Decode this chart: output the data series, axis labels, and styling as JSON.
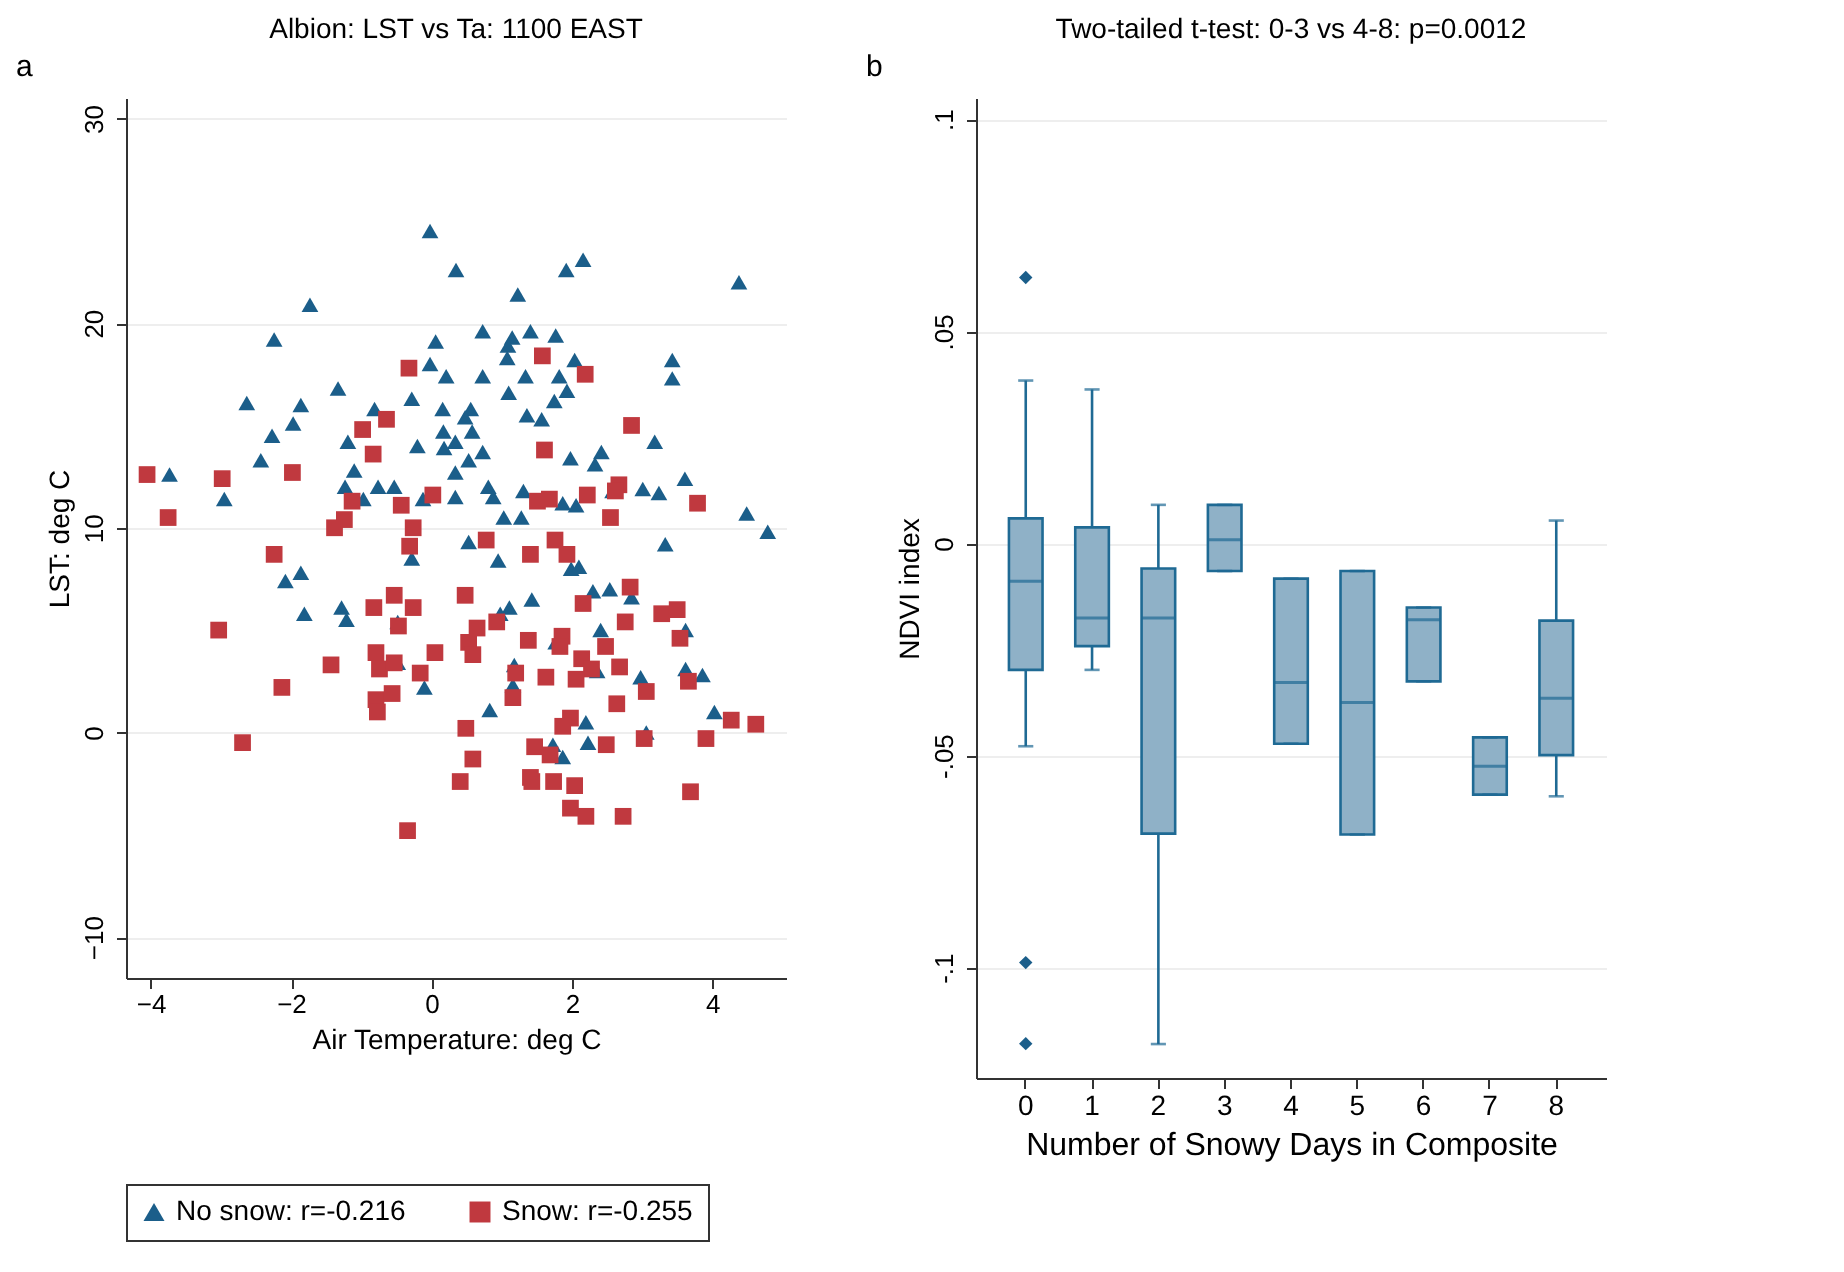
{
  "chart_data": [
    {
      "type": "scatter",
      "title": "Albion: LST vs Ta: 1100 EAST",
      "xlabel": "Air Temperature: deg C",
      "ylabel": "LST: deg C",
      "annotations": [
        "a"
      ],
      "xlim": [
        -4.35,
        5.05
      ],
      "xticks": [
        -4,
        -2,
        0,
        2,
        4
      ],
      "ylim": [
        -12,
        31
      ],
      "yticks": [
        -10,
        0,
        10,
        20,
        30
      ],
      "grid": "y",
      "legend": "bottom",
      "series": [
        {
          "name": "No snow: r=-0.216",
          "color": "#1b5e8a",
          "marker": "triangle",
          "x": [
            -0.02,
            0.35,
            1.23,
            1.92,
            2.16,
            4.38,
            -1.73,
            -2.24,
            0.73,
            1.15,
            1.41,
            1.77,
            0.06,
            1.09,
            1.08,
            2.04,
            3.43,
            3.43,
            -0.02,
            0.21,
            0.73,
            1.34,
            1.82,
            1.93,
            -1.33,
            1.1,
            1.75,
            -0.28,
            -2.63,
            -1.86,
            -0.81,
            0.16,
            0.56,
            0.48,
            1.36,
            1.57,
            -1.97,
            0.17,
            0.58,
            -2.27,
            -1.19,
            -0.2,
            0.34,
            3.18,
            0.18,
            0.73,
            2.42,
            1.98,
            0.53,
            -2.43,
            2.33,
            -1.1,
            -3.73,
            0.34,
            3.61,
            -1.23,
            -0.76,
            -0.53,
            0.81,
            3.01,
            3.24,
            -2.95,
            -0.97,
            -0.12,
            0.34,
            0.88,
            1.31,
            2.58,
            1.87,
            2.06,
            1.03,
            1.28,
            4.49,
            4.79,
            0.53,
            3.33,
            0.95,
            -0.28,
            -2.08,
            -1.86,
            1.99,
            2.1,
            2.3,
            2.54,
            1.43,
            2.85,
            1.11,
            0.98,
            -1.28,
            -1.81,
            -1.21,
            2.41,
            3.62,
            1.77,
            1.18,
            1.16,
            2.36,
            2.98,
            3.62,
            3.86,
            -0.1,
            0.83,
            4.03,
            2.2,
            3.06,
            1.73,
            1.87,
            2.23,
            -0.48,
            -0.48
          ],
          "values": [
            24.5,
            22.6,
            21.4,
            22.6,
            23.1,
            22.0,
            20.9,
            19.2,
            19.6,
            19.3,
            19.6,
            19.4,
            19.1,
            18.9,
            18.3,
            18.2,
            18.2,
            17.3,
            18.0,
            17.4,
            17.4,
            17.4,
            17.4,
            16.7,
            16.8,
            16.6,
            16.2,
            16.3,
            16.1,
            16.0,
            15.8,
            15.8,
            15.8,
            15.4,
            15.5,
            15.3,
            15.1,
            14.7,
            14.7,
            14.5,
            14.2,
            14.0,
            14.2,
            14.2,
            13.9,
            13.7,
            13.7,
            13.4,
            13.3,
            13.3,
            13.1,
            12.8,
            12.6,
            12.7,
            12.4,
            12.0,
            12.0,
            12.0,
            12.0,
            11.9,
            11.7,
            11.4,
            11.4,
            11.4,
            11.5,
            11.5,
            11.8,
            11.8,
            11.2,
            11.1,
            10.5,
            10.5,
            10.7,
            9.8,
            9.3,
            9.2,
            8.4,
            8.5,
            7.4,
            7.8,
            8.0,
            8.1,
            6.9,
            7.0,
            6.5,
            6.6,
            6.1,
            5.8,
            6.1,
            5.8,
            5.5,
            5.0,
            5.0,
            4.4,
            3.3,
            2.3,
            3.0,
            2.7,
            3.1,
            2.8,
            2.2,
            1.1,
            1.0,
            0.5,
            0.0,
            -0.6,
            -1.2,
            -0.5,
            3.4,
            5.4
          ]
        },
        {
          "name": "Snow: r=-0.255",
          "color": "#c0393f",
          "marker": "square",
          "x": [
            1.58,
            2.19,
            -0.32,
            -0.98,
            -0.64,
            2.85,
            1.61,
            -0.83,
            -4.05,
            -2.98,
            -1.98,
            0.02,
            2.22,
            2.67,
            2.62,
            1.51,
            1.68,
            -1.13,
            -0.43,
            3.79,
            -3.75,
            -1.24,
            -1.38,
            -0.26,
            2.55,
            -0.31,
            0.78,
            1.76,
            1.41,
            1.93,
            -2.24,
            2.83,
            2.16,
            -0.53,
            -0.82,
            -0.26,
            0.48,
            -3.03,
            -0.47,
            0.65,
            0.93,
            0.53,
            0.59,
            -0.79,
            -0.74,
            -0.53,
            0.05,
            -1.43,
            -0.16,
            -2.13,
            -0.79,
            -0.77,
            -0.56,
            1.38,
            1.86,
            1.83,
            2.14,
            2.48,
            2.28,
            2.06,
            1.2,
            1.63,
            2.68,
            2.76,
            3.28,
            3.5,
            3.54,
            3.66,
            3.06,
            1.16,
            2.64,
            4.27,
            4.62,
            0.49,
            1.98,
            1.87,
            1.47,
            1.69,
            2.49,
            3.03,
            3.91,
            -2.69,
            0.59,
            0.41,
            1.41,
            1.43,
            1.74,
            2.04,
            1.98,
            2.2,
            2.73,
            3.69,
            -0.34
          ],
          "values": [
            18.4,
            17.5,
            17.8,
            14.8,
            15.3,
            15.0,
            13.8,
            13.6,
            12.6,
            12.4,
            12.7,
            11.6,
            11.6,
            12.1,
            11.8,
            11.3,
            11.4,
            11.3,
            11.1,
            11.2,
            10.5,
            10.4,
            10.0,
            10.0,
            10.5,
            9.1,
            9.4,
            9.4,
            8.7,
            8.7,
            8.7,
            7.1,
            6.3,
            6.7,
            6.1,
            6.1,
            6.7,
            5.0,
            5.2,
            5.1,
            5.4,
            4.4,
            3.8,
            3.9,
            3.1,
            3.4,
            3.9,
            3.3,
            2.9,
            2.2,
            1.6,
            1.0,
            1.9,
            4.5,
            4.7,
            4.2,
            3.6,
            4.2,
            3.1,
            2.6,
            2.9,
            2.7,
            3.2,
            5.4,
            5.8,
            6.0,
            4.6,
            2.5,
            2.0,
            1.7,
            1.4,
            0.6,
            0.4,
            0.2,
            0.7,
            0.3,
            -0.7,
            -1.1,
            -0.6,
            -0.3,
            -0.3,
            -0.5,
            -1.3,
            -2.4,
            -2.2,
            -2.4,
            -2.4,
            -2.6,
            -3.7,
            -4.1,
            -4.1,
            -2.9,
            -4.8
          ]
        }
      ]
    },
    {
      "type": "box",
      "title": "Two-tailed t-test: 0-3 vs 4-8: p=0.0012",
      "xlabel": "Number of Snowy Days in Composite",
      "ylabel": "NDVI index",
      "annotations": [
        "b"
      ],
      "categories": [
        "0",
        "1",
        "2",
        "3",
        "4",
        "5",
        "6",
        "7",
        "8"
      ],
      "color": "#8fb1c7",
      "ylim": [
        -0.126,
        0.105
      ],
      "yticks": [
        {
          "value": -0.1,
          "label": "-.1"
        },
        {
          "value": -0.05,
          "label": "-.05"
        },
        0,
        {
          "value": 0.05,
          "label": ".05"
        },
        {
          "value": 0.1,
          "label": ".1"
        }
      ],
      "grid": "y",
      "boxes": [
        {
          "low": -0.0478,
          "q1": -0.0298,
          "median": -0.0089,
          "q3": 0.0059,
          "high": 0.0384,
          "outliers": [
            0.0627,
            -0.0988,
            -0.1179
          ]
        },
        {
          "low": -0.0298,
          "q1": -0.0242,
          "median": -0.0176,
          "q3": 0.0038,
          "high": 0.0363
        },
        {
          "low": -0.118,
          "q1": -0.0684,
          "median": -0.0176,
          "q3": -0.0059,
          "high": 0.0091
        },
        {
          "low": -0.0065,
          "q1": -0.0065,
          "median": 0.0009,
          "q3": 0.0091,
          "high": 0.0091
        },
        {
          "low": -0.0472,
          "q1": -0.0472,
          "median": -0.0328,
          "q3": -0.0083,
          "high": -0.0083
        },
        {
          "low": -0.0686,
          "q1": -0.0686,
          "median": -0.0375,
          "q3": -0.0065,
          "high": -0.0065
        },
        {
          "low": -0.0325,
          "q1": -0.0325,
          "median": -0.018,
          "q3": -0.0151,
          "high": -0.0151
        },
        {
          "low": -0.0592,
          "q1": -0.0592,
          "median": -0.0525,
          "q3": -0.0457,
          "high": -0.0457
        },
        {
          "low": -0.0596,
          "q1": -0.0499,
          "median": -0.0365,
          "q3": -0.0182,
          "high": 0.0054
        }
      ]
    }
  ]
}
